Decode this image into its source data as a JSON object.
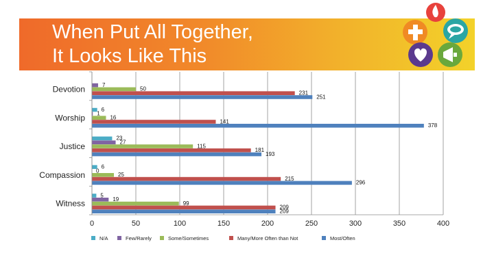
{
  "header": {
    "title_line1": "When Put All Together,",
    "title_line2": "It Looks Like This"
  },
  "logo": {
    "icons": [
      "flame-icon",
      "cross-icon",
      "speech-bubble-icon",
      "heart-icon",
      "megaphone-icon"
    ],
    "colors": [
      "#e8423c",
      "#f08a24",
      "#2aa6a4",
      "#5b3a8e",
      "#6aa83c"
    ]
  },
  "chart_data": {
    "type": "bar",
    "orientation": "horizontal",
    "categories": [
      "Devotion",
      "Worship",
      "Justice",
      "Compassion",
      "Witness"
    ],
    "series": [
      {
        "name": "N/A",
        "color": "#4bacc6",
        "values": [
          0,
          6,
          23,
          6,
          5
        ],
        "labels": [
          "",
          "6",
          "23",
          "6",
          "5"
        ]
      },
      {
        "name": "Few/Rarely",
        "color": "#8064a2",
        "values": [
          7,
          1,
          27,
          0,
          19
        ],
        "labels": [
          "7",
          "1",
          "27",
          "0",
          "19"
        ]
      },
      {
        "name": "Some/Sometimes",
        "color": "#9bbb59",
        "values": [
          50,
          16,
          115,
          25,
          99
        ],
        "labels": [
          "50",
          "16",
          "115",
          "25",
          "99"
        ]
      },
      {
        "name": "Many/More Often than Not",
        "color": "#c0504d",
        "values": [
          231,
          141,
          181,
          215,
          209
        ],
        "labels": [
          "231",
          "141",
          "181",
          "215",
          "209"
        ]
      },
      {
        "name": "Most/Often",
        "color": "#4f81bd",
        "values": [
          251,
          378,
          193,
          296,
          209
        ],
        "labels": [
          "251",
          "378",
          "193",
          "296",
          "209"
        ]
      }
    ],
    "xlim": [
      0,
      400
    ],
    "xticks": [
      "0",
      "50",
      "100",
      "150",
      "200",
      "250",
      "300",
      "350",
      "400"
    ],
    "grid": true,
    "legend": "bottom"
  }
}
